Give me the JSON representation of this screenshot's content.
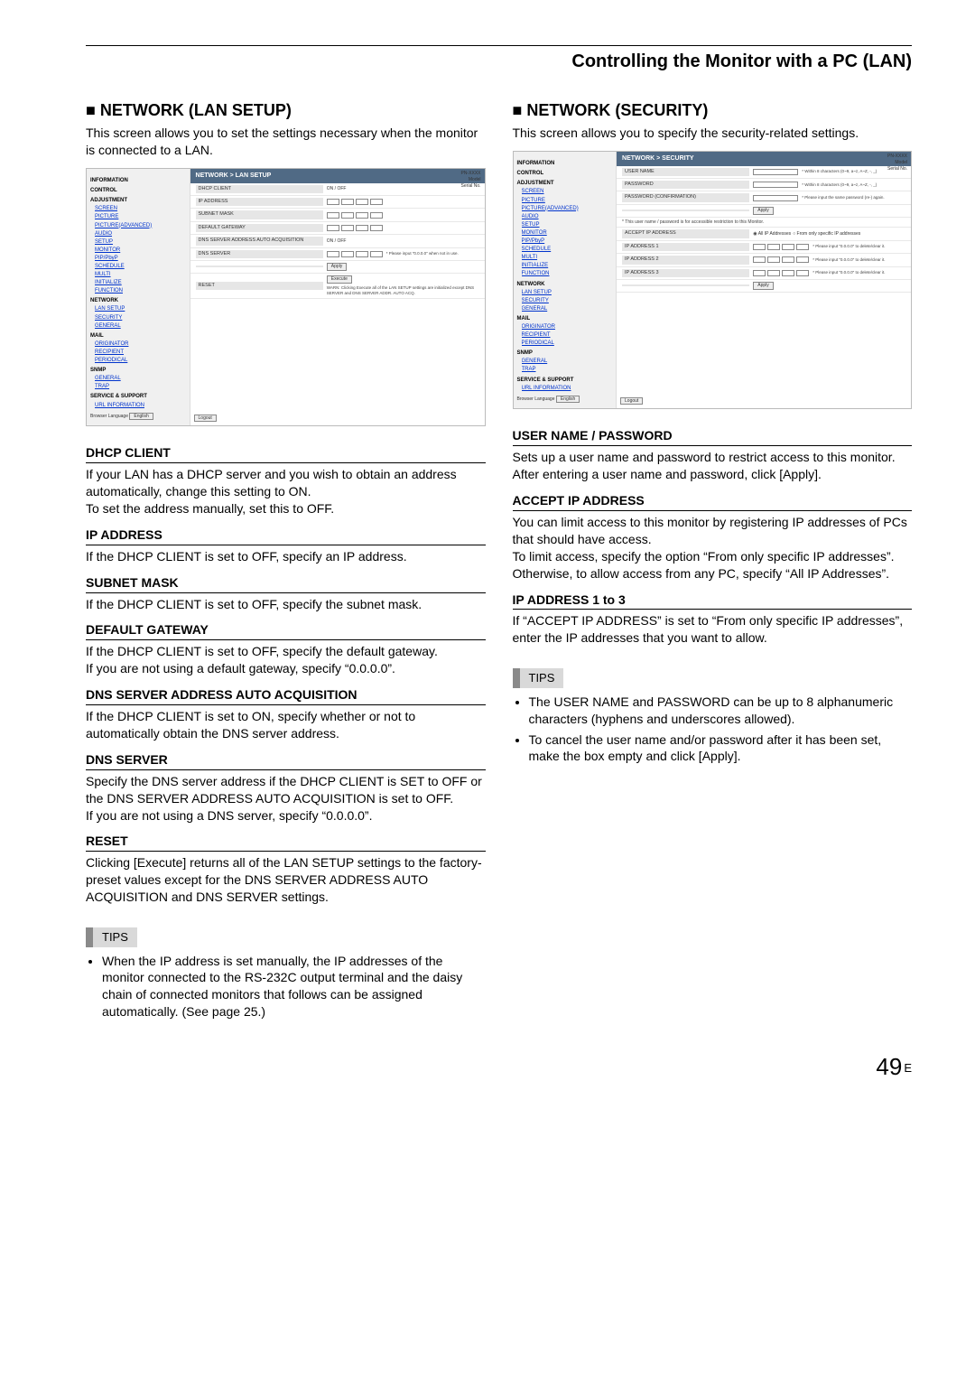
{
  "header": {
    "title": "Controlling the Monitor with a PC (LAN)"
  },
  "page_number": "49",
  "page_suffix": "E",
  "left": {
    "heading": "■ NETWORK (LAN SETUP)",
    "intro": "This screen allows you to set the settings necessary when the monitor is connected to a LAN.",
    "defs": [
      {
        "term": "DHCP CLIENT",
        "body": "If your LAN has a DHCP server and you wish to obtain an address automatically, change this setting to ON.\nTo set the address manually, set this to OFF."
      },
      {
        "term": "IP ADDRESS",
        "body": "If the DHCP CLIENT is set to OFF, specify an IP address."
      },
      {
        "term": "SUBNET MASK",
        "body": "If the DHCP CLIENT is set to OFF, specify the subnet mask."
      },
      {
        "term": "DEFAULT GATEWAY",
        "body": "If the DHCP CLIENT is set to OFF, specify the default gateway.\nIf you are not using a default gateway, specify “0.0.0.0”."
      },
      {
        "term": "DNS SERVER ADDRESS AUTO ACQUISITION",
        "body": "If the DHCP CLIENT is set to ON, specify whether or not to automatically obtain the DNS server address."
      },
      {
        "term": "DNS SERVER",
        "body": "Specify the DNS server address if the DHCP CLIENT is SET to OFF or the DNS SERVER ADDRESS AUTO ACQUISITION is set to OFF.\nIf you are not using a DNS server, specify “0.0.0.0”."
      },
      {
        "term": "RESET",
        "body": "Clicking [Execute] returns all of the LAN SETUP settings to the factory-preset values except for the DNS SERVER ADDRESS AUTO ACQUISITION and DNS SERVER settings."
      }
    ],
    "tips_label": "TIPS",
    "tips": [
      "When the IP address is set manually, the IP addresses of the monitor connected to the RS-232C output terminal and the daisy chain of connected monitors that follows can be assigned automatically. (See page 25.)"
    ]
  },
  "right": {
    "heading": "■ NETWORK (SECURITY)",
    "intro": "This screen allows you to specify the security-related settings.",
    "defs": [
      {
        "term": "USER NAME / PASSWORD",
        "body": "Sets up a user name and password to restrict access to this monitor.\nAfter entering a user name and password, click [Apply]."
      },
      {
        "term": "ACCEPT IP ADDRESS",
        "body": "You can limit access to this monitor by registering IP addresses of PCs that should have access.\nTo limit access, specify the option “From only specific IP addresses”. Otherwise, to allow access from any PC, specify “All IP Addresses”."
      },
      {
        "term": "IP ADDRESS 1 to 3",
        "body": "If “ACCEPT IP ADDRESS” is set to “From only specific IP addresses”, enter the IP addresses that you want to allow."
      }
    ],
    "tips_label": "TIPS",
    "tips": [
      "The USER NAME and PASSWORD can be up to 8 alphanumeric characters (hyphens and underscores allowed).",
      "To cancel the user name and/or password after it has been set, make the box empty and click [Apply]."
    ]
  },
  "shot_common": {
    "model": "PN-XXXX",
    "sidebar": {
      "info": "INFORMATION",
      "control": "CONTROL",
      "adjustment": "ADJUSTMENT",
      "adj_items": [
        "SCREEN",
        "PICTURE",
        "PICTURE(ADVANCED)",
        "AUDIO",
        "SETUP",
        "MONITOR",
        "PIP/PbyP",
        "SCHEDULE",
        "MULTI",
        "INITIALIZE",
        "FUNCTION"
      ],
      "network": "NETWORK",
      "net_items": [
        "LAN SETUP",
        "SECURITY",
        "GENERAL"
      ],
      "mail": "MAIL",
      "mail_items": [
        "ORIGINATOR",
        "RECIPIENT",
        "PERIODICAL"
      ],
      "snmp": "SNMP",
      "snmp_items": [
        "GENERAL",
        "TRAP"
      ],
      "service": "SERVICE & SUPPORT",
      "svc_items": [
        "URL INFORMATION"
      ],
      "lang_label": "Browser Language",
      "lang_value": "English"
    },
    "logout": "Logout"
  },
  "shot_lan": {
    "panel_title": "NETWORK > LAN SETUP",
    "model_lbl": "Model",
    "sn_lbl": "Serial No.",
    "rows": {
      "dhcp": "DHCP CLIENT",
      "dhcp_val": "ON / OFF",
      "ip": "IP ADDRESS",
      "mask": "SUBNET MASK",
      "gw": "DEFAULT GATEWAY",
      "dnsauto": "DNS SERVER ADDRESS AUTO ACQUISITION",
      "dnsauto_val": "ON / OFF",
      "dns": "DNS SERVER",
      "note_tcp": "* Please input \"0.0.0.0\" when not in use.",
      "apply": "Apply",
      "reset": "RESET",
      "execute": "Execute",
      "warn": "WARN: Clicking Execute all of the LAN SETUP settings are initialized except DNS SERVER and DNS SERVER ADDR. AUTO ACQ."
    }
  },
  "shot_sec": {
    "panel_title": "NETWORK > SECURITY",
    "rows": {
      "user": "USER NAME",
      "user_note": "* Within 8 characters (0~9, a~z, A~Z, -, _)",
      "pass": "PASSWORD",
      "pass_note": "* Within 8 characters (0~9, a~z, A~Z, -, _)",
      "confirm": "PASSWORD (CONFIRMATION)",
      "confirm_note": "* Please input the same password (re-) again.",
      "apply": "Apply",
      "applied_note": "* This user name / password is for accessible restriction to this Monitor.",
      "accept": "ACCEPT IP ADDRESS",
      "radio_all": "All IP Addresses",
      "radio_spec": "From only specific IP addresses",
      "ip1": "IP ADDRESS 1",
      "ip2": "IP ADDRESS 2",
      "ip3": "IP ADDRESS 3",
      "ip_note": "* Please input \"0.0.0.0\" to delete/clear it."
    }
  }
}
